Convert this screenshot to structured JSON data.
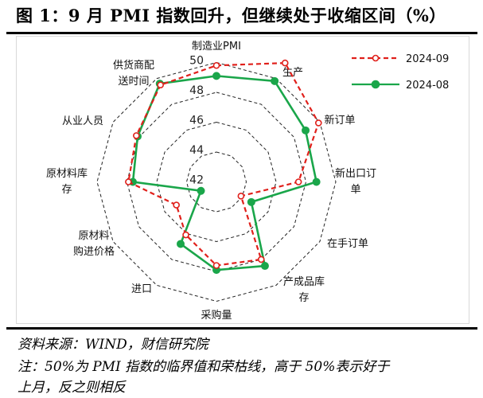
{
  "title": "图 1：9 月 PMI 指数回升，但继续处于收缩区间（%）",
  "footer": {
    "source": "资料来源：WIND，财信研究院",
    "note_line1": "注：50%为 PMI 指数的临界值和荣枯线，高于 50%表示好于",
    "note_line2": "上月，反之则相反"
  },
  "chart_data": {
    "type": "radar",
    "categories": [
      "制造业PMI",
      "生产",
      "新订单",
      "新出口订单",
      "在手订单",
      "产成品库存",
      "采购量",
      "进口",
      "原材料购进价格",
      "原材料库存",
      "从业人员",
      "供货商配送时间"
    ],
    "category_label_lines": [
      [
        "制造业PMI"
      ],
      [
        "生产"
      ],
      [
        "新订单"
      ],
      [
        "新出口订",
        "单"
      ],
      [
        "在手订单"
      ],
      [
        "产成品库",
        "存"
      ],
      [
        "采购量"
      ],
      [
        "进口"
      ],
      [
        "原材料",
        "购进价格"
      ],
      [
        "原材料库",
        "存"
      ],
      [
        "从业人员"
      ],
      [
        "供货商配",
        "送时间"
      ]
    ],
    "rlim": [
      42,
      50
    ],
    "ticks": [
      "42",
      "44",
      "46",
      "48",
      "50"
    ],
    "grid": true,
    "legend_position": "top-right",
    "series": [
      {
        "name": "2024-09",
        "color": "#e0201b",
        "style": "dashed",
        "marker": "open-circle",
        "values": [
          49.8,
          51.2,
          49.9,
          47.5,
          43.9,
          48.0,
          47.6,
          46.1,
          45.1,
          47.9,
          48.2,
          49.5
        ]
      },
      {
        "name": "2024-08",
        "color": "#1aa64a",
        "style": "solid",
        "marker": "filled-circle",
        "values": [
          49.1,
          49.8,
          48.9,
          48.7,
          44.7,
          48.5,
          47.9,
          46.8,
          43.2,
          47.6,
          48.1,
          49.6
        ]
      }
    ]
  }
}
